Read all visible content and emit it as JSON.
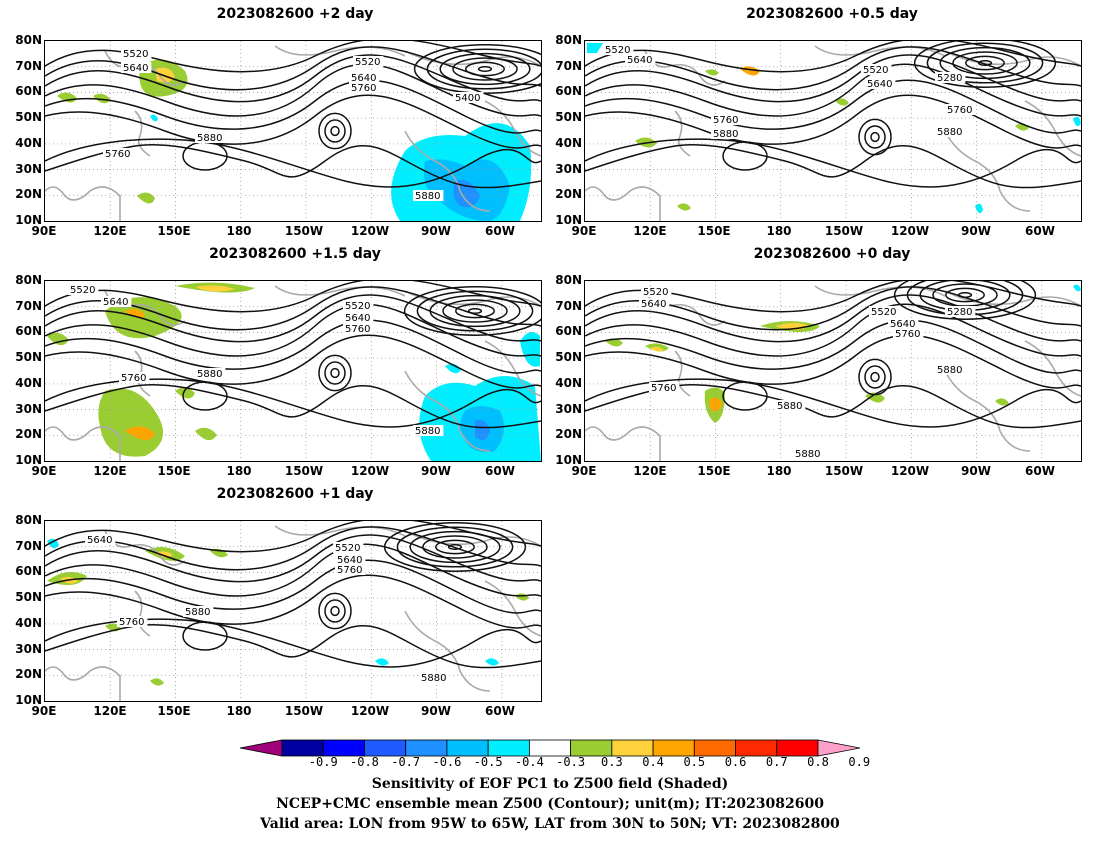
{
  "panels": [
    {
      "id": "p1",
      "title": "2023082600 +2 day"
    },
    {
      "id": "p2",
      "title": "2023082600 +0.5 day"
    },
    {
      "id": "p3",
      "title": "2023082600 +1.5 day"
    },
    {
      "id": "p4",
      "title": "2023082600 +0 day"
    },
    {
      "id": "p5",
      "title": "2023082600 +1 day"
    }
  ],
  "lat_labels": [
    "80N",
    "70N",
    "60N",
    "50N",
    "40N",
    "30N",
    "20N",
    "10N"
  ],
  "lon_labels": [
    "90E",
    "120E",
    "150E",
    "180",
    "150W",
    "120W",
    "90W",
    "60W"
  ],
  "contour_labels": {
    "p1": [
      "5520",
      "5640",
      "5520",
      "5640",
      "5760",
      "5400",
      "5760",
      "5880",
      "5880"
    ],
    "p2": [
      "5520",
      "5640",
      "5520",
      "5640",
      "5280",
      "5760",
      "5760",
      "5880",
      "5880"
    ],
    "p3": [
      "5520",
      "5640",
      "5520",
      "5640",
      "5760",
      "5760",
      "5880",
      "5880"
    ],
    "p4": [
      "5520",
      "5640",
      "5520",
      "5640",
      "5760",
      "5280",
      "5880",
      "5760",
      "5880",
      "5880"
    ],
    "p5": [
      "5640",
      "5520",
      "5640",
      "5760",
      "5760",
      "5880",
      "5880"
    ]
  },
  "colorbar": {
    "ticks": [
      "-0.9",
      "-0.8",
      "-0.7",
      "-0.6",
      "-0.5",
      "-0.4",
      "-0.3",
      "0.3",
      "0.4",
      "0.5",
      "0.6",
      "0.7",
      "0.8",
      "0.9"
    ],
    "colors": [
      "#a0007a",
      "#0000a0",
      "#0000ff",
      "#1e5cff",
      "#1e90ff",
      "#00bfff",
      "#00eeff",
      "#ffffff",
      "#9acd32",
      "#ffd23c",
      "#ffa500",
      "#ff6a00",
      "#ff2a00",
      "#ff0000",
      "#ffa0c8"
    ]
  },
  "caption": {
    "line1": "Sensitivity of EOF PC1 to Z500 field (Shaded)",
    "line2": "NCEP+CMC ensemble mean Z500 (Contour); unit(m); IT:2023082600",
    "line3": "Valid area: LON from 95W to 65W, LAT from 30N to 50N; VT: 2023082800"
  }
}
